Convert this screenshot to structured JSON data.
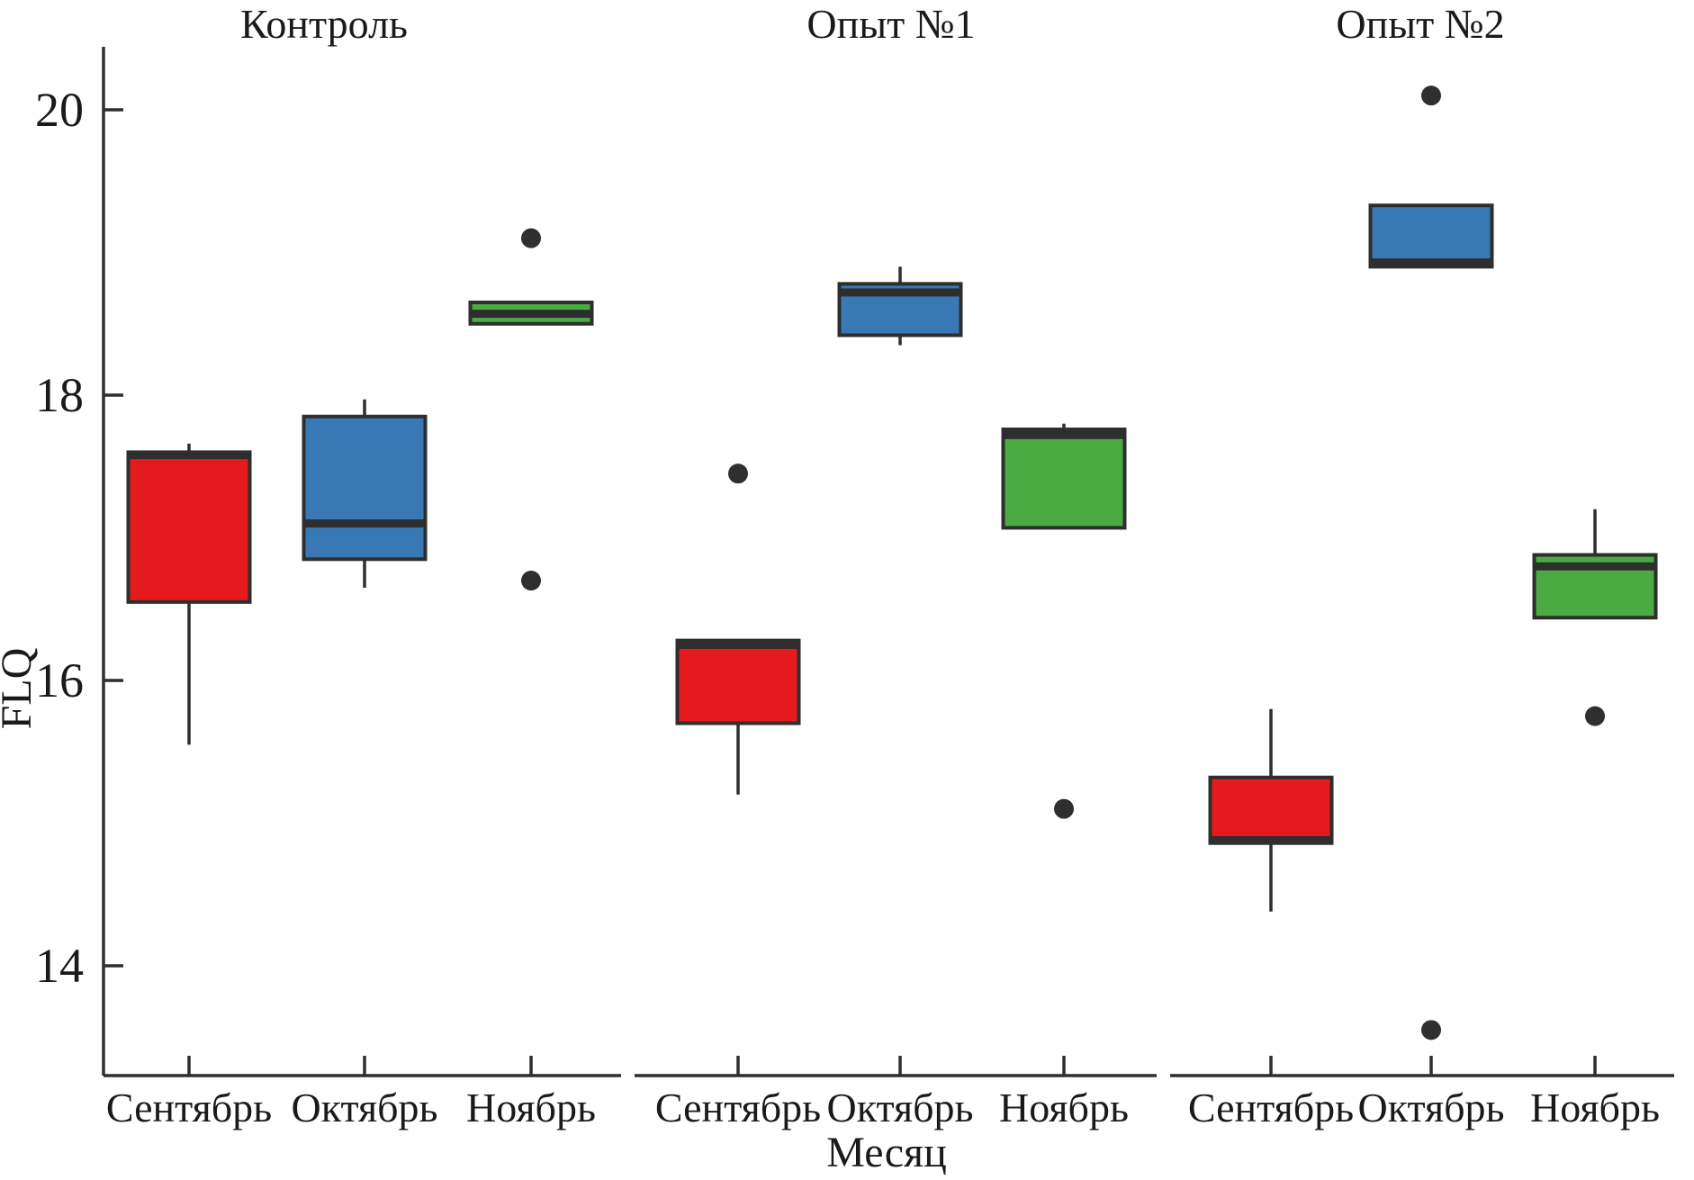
{
  "figure": {
    "background": "#ffffff",
    "line_color": "#2e2e2e",
    "text_color": "#1a1a1a"
  },
  "chart_data": {
    "type": "boxplot",
    "ylabel": "FLQ",
    "xlabel": "Месяц",
    "y_ticks": [
      20,
      18,
      16,
      14
    ],
    "ylim": [
      13.2,
      20.45
    ],
    "categories": [
      "Сентябрь",
      "Октябрь",
      "Ноябрь"
    ],
    "palette": {
      "Сентябрь": "#e41a1c",
      "Октябрь": "#3878b4",
      "Ноябрь": "#4aab43"
    },
    "panels": [
      {
        "title": "Контроль",
        "boxes": [
          {
            "month": "Сентябрь",
            "color": "#e41a1c",
            "whisker_low": 15.55,
            "q1": 16.55,
            "median": 17.58,
            "q3": 17.6,
            "whisker_high": 17.66,
            "outliers": []
          },
          {
            "month": "Октябрь",
            "color": "#3878b4",
            "whisker_low": 16.65,
            "q1": 16.85,
            "median": 17.1,
            "q3": 17.85,
            "whisker_high": 17.97,
            "outliers": []
          },
          {
            "month": "Ноябрь",
            "color": "#4aab43",
            "whisker_low": 18.5,
            "q1": 18.5,
            "median": 18.57,
            "q3": 18.65,
            "whisker_high": 18.65,
            "outliers": [
              19.1,
              16.7
            ]
          }
        ]
      },
      {
        "title": "Опыт №1",
        "boxes": [
          {
            "month": "Сентябрь",
            "color": "#e41a1c",
            "whisker_low": 15.2,
            "q1": 15.7,
            "median": 16.25,
            "q3": 16.28,
            "whisker_high": 16.28,
            "outliers": [
              17.45
            ]
          },
          {
            "month": "Октябрь",
            "color": "#3878b4",
            "whisker_low": 18.35,
            "q1": 18.42,
            "median": 18.72,
            "q3": 18.78,
            "whisker_high": 18.9,
            "outliers": []
          },
          {
            "month": "Ноябрь",
            "color": "#4aab43",
            "whisker_low": 17.07,
            "q1": 17.07,
            "median": 17.72,
            "q3": 17.76,
            "whisker_high": 17.8,
            "outliers": [
              15.1
            ]
          }
        ]
      },
      {
        "title": "Опыт №2",
        "boxes": [
          {
            "month": "Сентябрь",
            "color": "#e41a1c",
            "whisker_low": 14.38,
            "q1": 14.86,
            "median": 14.88,
            "q3": 15.32,
            "whisker_high": 15.8,
            "outliers": []
          },
          {
            "month": "Октябрь",
            "color": "#3878b4",
            "whisker_low": 18.9,
            "q1": 18.9,
            "median": 18.93,
            "q3": 19.33,
            "whisker_high": 19.33,
            "outliers": [
              20.1,
              13.55
            ]
          },
          {
            "month": "Ноябрь",
            "color": "#4aab43",
            "whisker_low": 16.44,
            "q1": 16.44,
            "median": 16.8,
            "q3": 16.88,
            "whisker_high": 17.2,
            "outliers": [
              15.75
            ]
          }
        ]
      }
    ]
  }
}
